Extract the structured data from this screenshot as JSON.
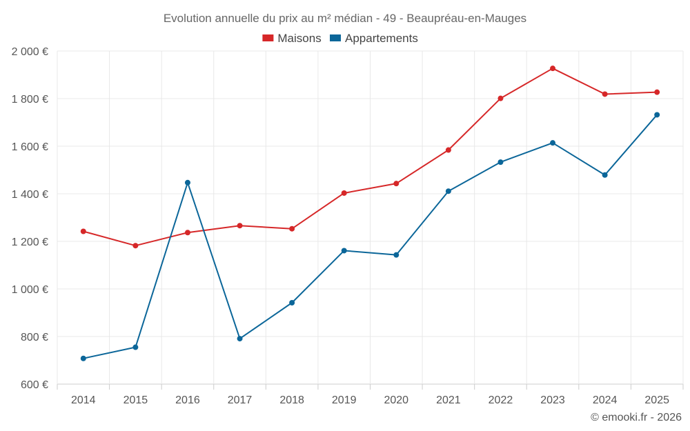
{
  "chart_data": {
    "type": "line",
    "title": "Evolution annuelle du prix au m² médian - 49 - Beaupréau-en-Mauges",
    "xlabel": "",
    "ylabel": "",
    "categories": [
      "2014",
      "2015",
      "2016",
      "2017",
      "2018",
      "2019",
      "2020",
      "2021",
      "2022",
      "2023",
      "2024",
      "2025"
    ],
    "ylim": [
      600,
      2000
    ],
    "yticks": [
      600,
      800,
      1000,
      1200,
      1400,
      1600,
      1800,
      2000
    ],
    "ytick_labels": [
      "600 €",
      "800 €",
      "1 000 €",
      "1 200 €",
      "1 400 €",
      "1 600 €",
      "1 800 €",
      "2 000 €"
    ],
    "grid": true,
    "legend_position": "top-center",
    "series": [
      {
        "name": "Maisons",
        "color": "#d62728",
        "values": [
          1242,
          1182,
          1237,
          1266,
          1253,
          1403,
          1443,
          1584,
          1801,
          1927,
          1819,
          1827
        ]
      },
      {
        "name": "Appartements",
        "color": "#0b6699",
        "values": [
          708,
          755,
          1447,
          791,
          942,
          1161,
          1143,
          1411,
          1533,
          1614,
          1479,
          1732
        ]
      }
    ],
    "credit": "© emooki.fr - 2026"
  }
}
